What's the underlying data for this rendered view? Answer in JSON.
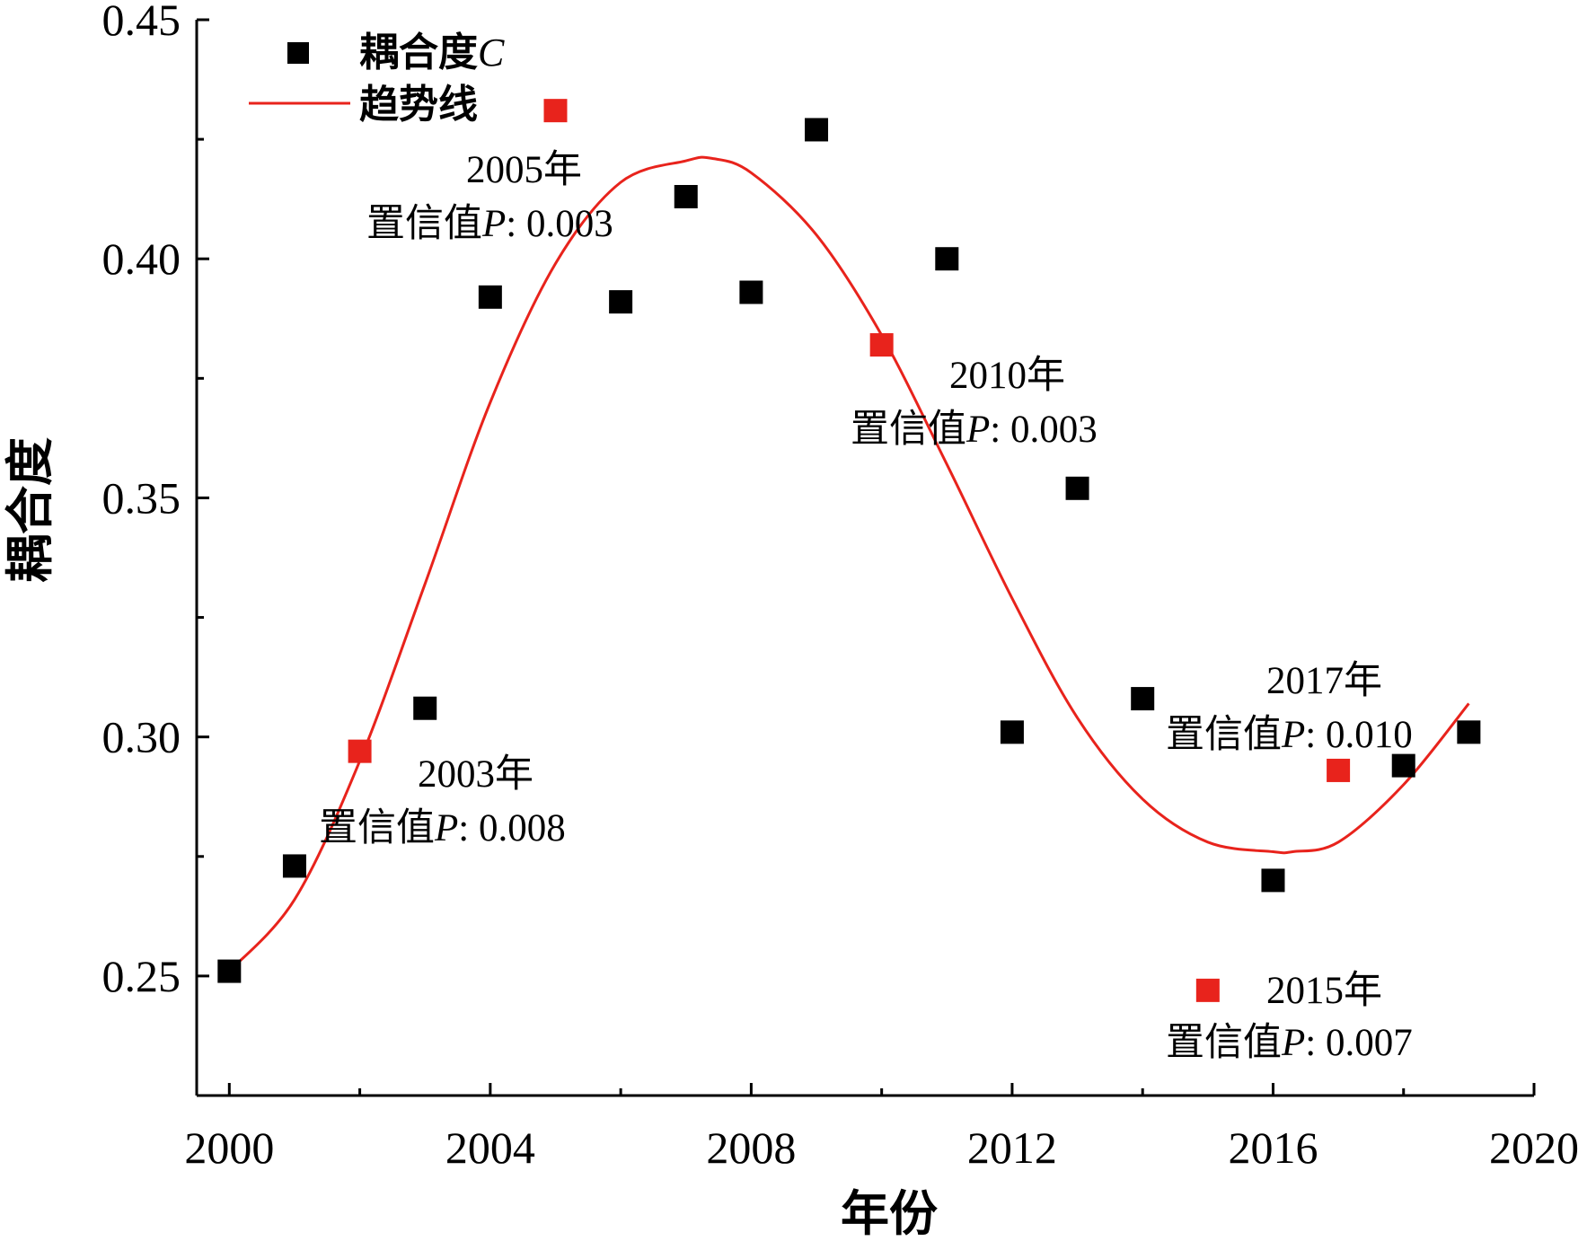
{
  "chart_data": {
    "type": "scatter",
    "xlabel": "年份",
    "ylabel": "耦合度",
    "xlim": [
      1999.5,
      2020
    ],
    "ylim": [
      0.225,
      0.45
    ],
    "xticks": [
      2000,
      2004,
      2008,
      2012,
      2016,
      2020
    ],
    "xticks_minor": [
      2002,
      2006,
      2010,
      2014,
      2018
    ],
    "yticks": [
      0.25,
      0.3,
      0.35,
      0.4,
      0.45
    ],
    "yticks_minor": [
      0.275,
      0.325,
      0.375,
      0.425
    ],
    "yticks_labels": [
      "0.25",
      "0.30",
      "0.35",
      "0.40",
      "0.45"
    ],
    "grid": false,
    "legend_position": "top-left",
    "legend": {
      "scatter_label": "耦合度",
      "scatter_label_italic": "C",
      "trend_label": "趋势线"
    },
    "series": [
      {
        "name": "耦合度C",
        "kind": "scatter",
        "x": [
          2000,
          2001,
          2002,
          2003,
          2004,
          2005,
          2006,
          2007,
          2008,
          2009,
          2010,
          2011,
          2012,
          2013,
          2014,
          2015,
          2016,
          2017,
          2018,
          2019
        ],
        "y": [
          0.251,
          0.273,
          0.297,
          0.306,
          0.392,
          0.431,
          0.391,
          0.413,
          0.393,
          0.427,
          0.382,
          0.4,
          0.301,
          0.352,
          0.308,
          0.247,
          0.27,
          0.293,
          0.294,
          0.301
        ],
        "highlight_years": [
          2002,
          2005,
          2010,
          2015,
          2017
        ]
      },
      {
        "name": "趋势线",
        "kind": "line",
        "x": [
          2000,
          2001,
          2002,
          2003,
          2004,
          2005,
          2006,
          2007,
          2007.4,
          2008,
          2009,
          2010,
          2011,
          2012,
          2013,
          2014,
          2015,
          2016,
          2016.3,
          2017,
          2018,
          2019
        ],
        "y": [
          0.251,
          0.266,
          0.295,
          0.332,
          0.37,
          0.399,
          0.416,
          0.4205,
          0.421,
          0.418,
          0.405,
          0.384,
          0.357,
          0.329,
          0.304,
          0.287,
          0.278,
          0.276,
          0.276,
          0.278,
          0.29,
          0.307
        ]
      }
    ],
    "colors": {
      "scatter": "#000000",
      "highlight": "#e8231c",
      "trend": "#e8231c",
      "axis": "#000000"
    },
    "annotations": [
      {
        "year": "2003年",
        "label": "置信值",
        "p": "P",
        "value": ": 0.008"
      },
      {
        "year": "2005年",
        "label": "置信值",
        "p": "P",
        "value": ": 0.003"
      },
      {
        "year": "2010年",
        "label": "置信值",
        "p": "P",
        "value": ": 0.003"
      },
      {
        "year": "2017年",
        "label": "置信值",
        "p": "P",
        "value": ": 0.010"
      },
      {
        "year": "2015年",
        "label": "置信值",
        "p": "P",
        "value": ": 0.007"
      }
    ]
  }
}
